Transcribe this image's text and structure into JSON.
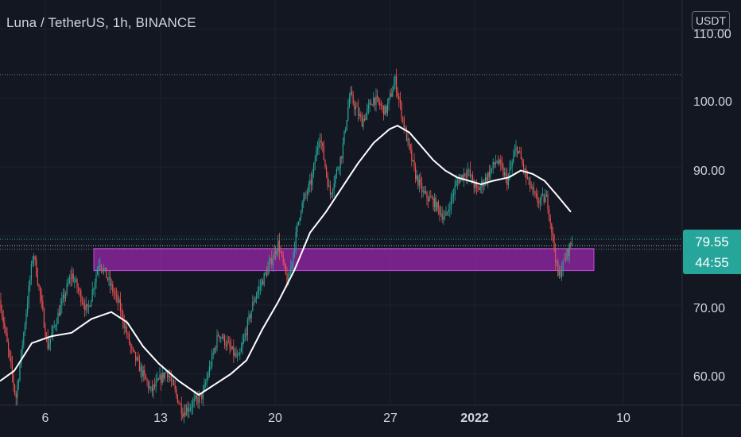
{
  "header": {
    "title": "Luna / TetherUS, 1h, BINANCE",
    "currency_label": "USDT"
  },
  "price_scale": {
    "current_price": "79.55",
    "countdown": "44:55",
    "ticks": [
      "110.00",
      "100.00",
      "90.00",
      "70.00",
      "60.00"
    ]
  },
  "time_scale": {
    "ticks": [
      "6",
      "13",
      "20",
      "27",
      "2022",
      "10"
    ]
  },
  "colors": {
    "background": "#131722",
    "up": "#26a69a",
    "down": "#ef5350",
    "moving_average": "#ffffff",
    "zone_fill": "#9c27b0",
    "zone_border": "#c14dd6",
    "grid": "#1e222d"
  },
  "chart_data": {
    "type": "candlestick",
    "symbol": "Luna / TetherUS",
    "interval": "1h",
    "exchange": "BINANCE",
    "currency": "USDT",
    "ylim": [
      55.5,
      114.2
    ],
    "y_ticks": [
      60,
      70,
      90,
      100,
      110
    ],
    "x_ticks": [
      "6",
      "13",
      "20",
      "27",
      "2022",
      "10"
    ],
    "current_price": 79.55,
    "price_key_points": [
      {
        "x": 0,
        "y": 70.7
      },
      {
        "x": 20,
        "y": 56.5
      },
      {
        "x": 42,
        "y": 77.8
      },
      {
        "x": 60,
        "y": 64.0
      },
      {
        "x": 90,
        "y": 74.5
      },
      {
        "x": 110,
        "y": 69.0
      },
      {
        "x": 125,
        "y": 76.5
      },
      {
        "x": 150,
        "y": 70.0
      },
      {
        "x": 165,
        "y": 63.5
      },
      {
        "x": 190,
        "y": 57.5
      },
      {
        "x": 210,
        "y": 60.5
      },
      {
        "x": 230,
        "y": 54.5
      },
      {
        "x": 255,
        "y": 57.0
      },
      {
        "x": 275,
        "y": 66.0
      },
      {
        "x": 300,
        "y": 62.0
      },
      {
        "x": 320,
        "y": 71.0
      },
      {
        "x": 340,
        "y": 76.0
      },
      {
        "x": 350,
        "y": 79.0
      },
      {
        "x": 362,
        "y": 73.0
      },
      {
        "x": 378,
        "y": 84.0
      },
      {
        "x": 392,
        "y": 88.0
      },
      {
        "x": 402,
        "y": 95.0
      },
      {
        "x": 415,
        "y": 86.0
      },
      {
        "x": 430,
        "y": 92.0
      },
      {
        "x": 440,
        "y": 100.5
      },
      {
        "x": 455,
        "y": 96.5
      },
      {
        "x": 470,
        "y": 100.0
      },
      {
        "x": 485,
        "y": 98.0
      },
      {
        "x": 497,
        "y": 102.5
      },
      {
        "x": 510,
        "y": 95.0
      },
      {
        "x": 522,
        "y": 89.0
      },
      {
        "x": 533,
        "y": 86.0
      },
      {
        "x": 545,
        "y": 85.0
      },
      {
        "x": 560,
        "y": 82.5
      },
      {
        "x": 575,
        "y": 88.0
      },
      {
        "x": 588,
        "y": 89.5
      },
      {
        "x": 600,
        "y": 86.5
      },
      {
        "x": 612,
        "y": 88.5
      },
      {
        "x": 625,
        "y": 91.0
      },
      {
        "x": 638,
        "y": 88.0
      },
      {
        "x": 650,
        "y": 93.0
      },
      {
        "x": 662,
        "y": 88.5
      },
      {
        "x": 675,
        "y": 85.0
      },
      {
        "x": 688,
        "y": 85.5
      },
      {
        "x": 695,
        "y": 80.0
      },
      {
        "x": 702,
        "y": 74.0
      },
      {
        "x": 710,
        "y": 76.5
      },
      {
        "x": 720,
        "y": 79.55
      }
    ],
    "moving_average_points": [
      {
        "x": 0,
        "y": 59.0
      },
      {
        "x": 18,
        "y": 60.5
      },
      {
        "x": 40,
        "y": 64.5
      },
      {
        "x": 65,
        "y": 65.5
      },
      {
        "x": 90,
        "y": 66.0
      },
      {
        "x": 115,
        "y": 68.0
      },
      {
        "x": 140,
        "y": 69.0
      },
      {
        "x": 160,
        "y": 67.5
      },
      {
        "x": 180,
        "y": 64.0
      },
      {
        "x": 200,
        "y": 61.5
      },
      {
        "x": 225,
        "y": 59.0
      },
      {
        "x": 250,
        "y": 57.0
      },
      {
        "x": 270,
        "y": 58.5
      },
      {
        "x": 290,
        "y": 60.0
      },
      {
        "x": 310,
        "y": 62.0
      },
      {
        "x": 330,
        "y": 66.5
      },
      {
        "x": 350,
        "y": 70.5
      },
      {
        "x": 370,
        "y": 75.0
      },
      {
        "x": 390,
        "y": 80.5
      },
      {
        "x": 410,
        "y": 83.5
      },
      {
        "x": 430,
        "y": 87.0
      },
      {
        "x": 450,
        "y": 90.5
      },
      {
        "x": 470,
        "y": 93.5
      },
      {
        "x": 490,
        "y": 95.5
      },
      {
        "x": 500,
        "y": 96.0
      },
      {
        "x": 515,
        "y": 95.0
      },
      {
        "x": 530,
        "y": 93.0
      },
      {
        "x": 545,
        "y": 91.0
      },
      {
        "x": 560,
        "y": 89.5
      },
      {
        "x": 575,
        "y": 88.5
      },
      {
        "x": 590,
        "y": 88.0
      },
      {
        "x": 605,
        "y": 87.5
      },
      {
        "x": 620,
        "y": 88.0
      },
      {
        "x": 640,
        "y": 88.5
      },
      {
        "x": 655,
        "y": 89.5
      },
      {
        "x": 670,
        "y": 89.0
      },
      {
        "x": 685,
        "y": 88.0
      },
      {
        "x": 700,
        "y": 86.0
      },
      {
        "x": 718,
        "y": 83.5
      }
    ],
    "zone": {
      "x_start": 118,
      "x_end": 747,
      "y_low": 75.0,
      "y_high": 78.2
    },
    "horizontal_levels": [
      103.4,
      79.55,
      78.6,
      78.1
    ]
  }
}
